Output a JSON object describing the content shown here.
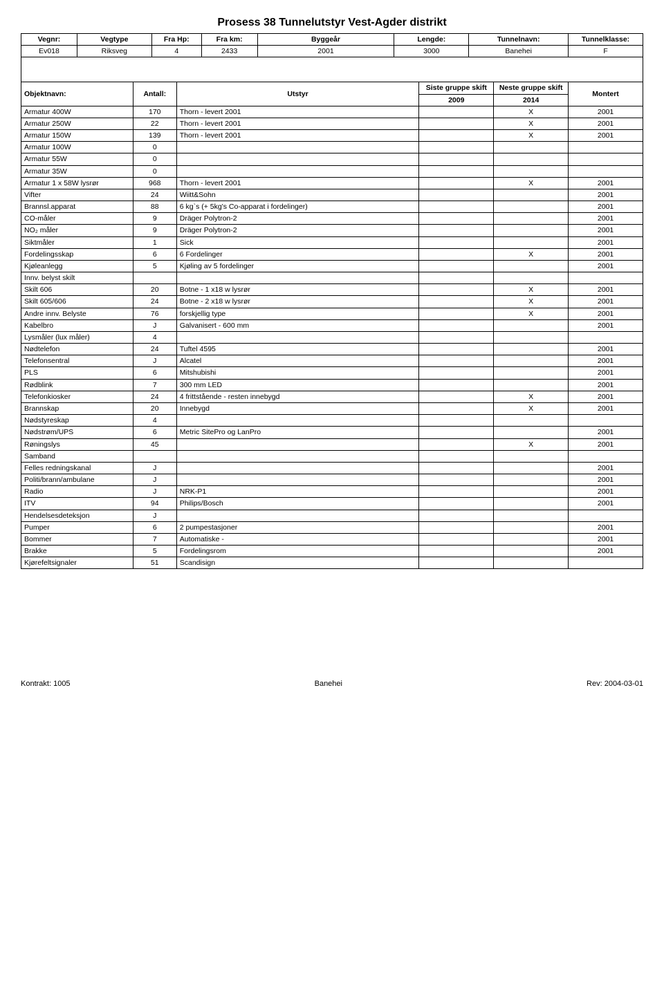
{
  "title": "Prosess 38 Tunnelutstyr Vest-Agder distrikt",
  "top_header": {
    "cols": [
      "Vegnr:",
      "Vegtype",
      "Fra Hp:",
      "Fra km:",
      "Byggeår",
      "Lengde:",
      "Tunnelnavn:",
      "Tunnelklasse:"
    ],
    "row": [
      "Ev018",
      "Riksveg",
      "4",
      "2433",
      "2001",
      "3000",
      "Banehei",
      "F"
    ]
  },
  "lower_header": {
    "objektnavn": "Objektnavn:",
    "antall": "Antall:",
    "utstyr": "Utstyr",
    "siste": "Siste gruppe skift",
    "neste": "Neste gruppe skift",
    "montert": "Montert",
    "siste_year": "2009",
    "neste_year": "2014"
  },
  "rows": [
    {
      "n": "Armatur 400W",
      "a": "170",
      "u": "Thorn - levert 2001",
      "s": "",
      "ne": "X",
      "m": "2001"
    },
    {
      "n": "Armatur 250W",
      "a": "22",
      "u": "Thorn - levert 2001",
      "s": "",
      "ne": "X",
      "m": "2001"
    },
    {
      "n": "Armatur 150W",
      "a": "139",
      "u": "Thorn - levert 2001",
      "s": "",
      "ne": "X",
      "m": "2001"
    },
    {
      "n": "Armatur 100W",
      "a": "0",
      "u": "",
      "s": "",
      "ne": "",
      "m": ""
    },
    {
      "n": "Armatur 55W",
      "a": "0",
      "u": "",
      "s": "",
      "ne": "",
      "m": ""
    },
    {
      "n": "Armatur 35W",
      "a": "0",
      "u": "",
      "s": "",
      "ne": "",
      "m": ""
    },
    {
      "n": "Armatur 1 x 58W lysrør",
      "a": "968",
      "u": "Thorn - levert 2001",
      "s": "",
      "ne": "X",
      "m": "2001"
    },
    {
      "n": "Vifter",
      "a": "24",
      "u": "Wiitt&Sohn",
      "s": "",
      "ne": "",
      "m": "2001"
    },
    {
      "n": "Brannsl.apparat",
      "a": "88",
      "u": "6 kg`s (+ 5kg's Co-apparat i fordelinger)",
      "s": "",
      "ne": "",
      "m": "2001"
    },
    {
      "n": "CO-måler",
      "a": "9",
      "u": "Dräger Polytron-2",
      "s": "",
      "ne": "",
      "m": "2001"
    },
    {
      "n": "NO₂ måler",
      "a": "9",
      "u": "Dräger Polytron-2",
      "s": "",
      "ne": "",
      "m": "2001"
    },
    {
      "n": "Siktmåler",
      "a": "1",
      "u": "Sick",
      "s": "",
      "ne": "",
      "m": "2001"
    },
    {
      "n": "Fordelingsskap",
      "a": "6",
      "u": "6 Fordelinger",
      "s": "",
      "ne": "X",
      "m": "2001"
    },
    {
      "n": "Kjøleanlegg",
      "a": "5",
      "u": "Kjøling av 5 fordelinger",
      "s": "",
      "ne": "",
      "m": "2001"
    },
    {
      "n": "Innv. belyst skilt",
      "a": "",
      "u": "",
      "s": "",
      "ne": "",
      "m": ""
    },
    {
      "n": "Skilt 606",
      "a": "20",
      "u": "Botne - 1 x18 w lysrør",
      "s": "",
      "ne": "X",
      "m": "2001"
    },
    {
      "n": "Skilt 605/606",
      "a": "24",
      "u": "Botne - 2 x18 w lysrør",
      "s": "",
      "ne": "X",
      "m": "2001"
    },
    {
      "n": "Andre innv. Belyste",
      "a": "76",
      "u": "forskjellig type",
      "s": "",
      "ne": "X",
      "m": "2001"
    },
    {
      "n": "Kabelbro",
      "a": "J",
      "u": "Galvanisert - 600 mm",
      "s": "",
      "ne": "",
      "m": "2001"
    },
    {
      "n": "Lysmåler (lux måler)",
      "a": "4",
      "u": "",
      "s": "",
      "ne": "",
      "m": ""
    },
    {
      "n": "Nødtelefon",
      "a": "24",
      "u": "Tuftel 4595",
      "s": "",
      "ne": "",
      "m": "2001"
    },
    {
      "n": "Telefonsentral",
      "a": "J",
      "u": "Alcatel",
      "s": "",
      "ne": "",
      "m": "2001"
    },
    {
      "n": "PLS",
      "a": "6",
      "u": "Mitshubishi",
      "s": "",
      "ne": "",
      "m": "2001"
    },
    {
      "n": "Rødblink",
      "a": "7",
      "u": "300 mm LED",
      "s": "",
      "ne": "",
      "m": "2001"
    },
    {
      "n": "Telefonkiosker",
      "a": "24",
      "u": "4 frittstående - resten innebygd",
      "s": "",
      "ne": "X",
      "m": "2001"
    },
    {
      "n": "Brannskap",
      "a": "20",
      "u": "Innebygd",
      "s": "",
      "ne": "X",
      "m": "2001"
    },
    {
      "n": "Nødstyreskap",
      "a": "4",
      "u": "",
      "s": "",
      "ne": "",
      "m": ""
    },
    {
      "n": "Nødstrøm/UPS",
      "a": "6",
      "u": "Metric SitePro og LanPro",
      "s": "",
      "ne": "",
      "m": "2001"
    },
    {
      "n": "Røningslys",
      "a": "45",
      "u": "",
      "s": "",
      "ne": "X",
      "m": "2001"
    },
    {
      "n": "Samband",
      "a": "",
      "u": "",
      "s": "",
      "ne": "",
      "m": ""
    },
    {
      "n": "Felles redningskanal",
      "a": "J",
      "u": "",
      "s": "",
      "ne": "",
      "m": "2001"
    },
    {
      "n": "Politi/brann/ambulane",
      "a": "J",
      "u": "",
      "s": "",
      "ne": "",
      "m": "2001"
    },
    {
      "n": "Radio",
      "a": "J",
      "u": "NRK-P1",
      "s": "",
      "ne": "",
      "m": "2001"
    },
    {
      "n": "ITV",
      "a": "94",
      "u": "Philips/Bosch",
      "s": "",
      "ne": "",
      "m": "2001"
    },
    {
      "n": "Hendelsesdeteksjon",
      "a": "J",
      "u": "",
      "s": "",
      "ne": "",
      "m": ""
    },
    {
      "n": "Pumper",
      "a": "6",
      "u": "2 pumpestasjoner",
      "s": "",
      "ne": "",
      "m": "2001"
    },
    {
      "n": "Bommer",
      "a": "7",
      "u": "Automatiske -",
      "s": "",
      "ne": "",
      "m": "2001"
    },
    {
      "n": "Brakke",
      "a": "5",
      "u": "Fordelingsrom",
      "s": "",
      "ne": "",
      "m": "2001"
    },
    {
      "n": "Kjørefeltsignaler",
      "a": "51",
      "u": "Scandisign",
      "s": "",
      "ne": "",
      "m": ""
    }
  ],
  "footer": {
    "left": "Kontrakt: 1005",
    "center": "Banehei",
    "right": "Rev: 2004-03-01"
  },
  "colwidths": {
    "top": [
      "9%",
      "12%",
      "8%",
      "9%",
      "22%",
      "12%",
      "16%",
      "12%"
    ],
    "lower": [
      "18%",
      "7%",
      "39%",
      "12%",
      "12%",
      "12%"
    ]
  }
}
